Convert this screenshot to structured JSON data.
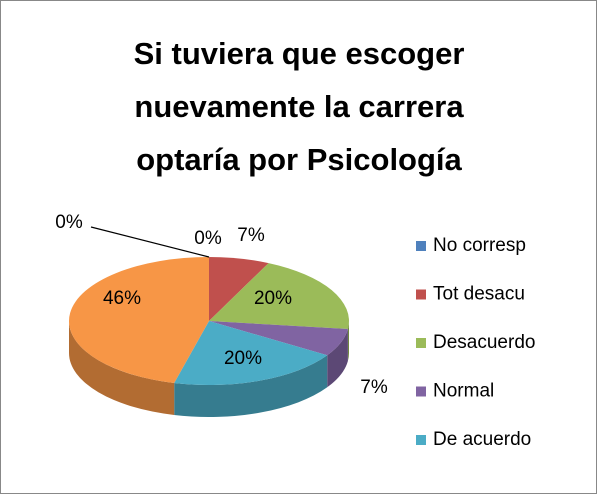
{
  "chart_data": {
    "type": "pie3d",
    "title": "Si tuviera que escoger nuevamente la carrera optaría por Psicología",
    "categories": [
      "No corresp",
      "Tot desacu",
      "Desacuerdo",
      "Normal",
      "De acuerdo",
      null,
      null
    ],
    "values": [
      0,
      7,
      20,
      7,
      20,
      46,
      0
    ],
    "value_labels": [
      "0%",
      "7%",
      "20%",
      "7%",
      "20%",
      "46%",
      "0%"
    ],
    "colors": [
      "#4f81bd",
      "#c0504d",
      "#9bbb59",
      "#8064a2",
      "#4bacc6",
      "#f79646",
      "#2c4d75"
    ],
    "legend": "right"
  }
}
